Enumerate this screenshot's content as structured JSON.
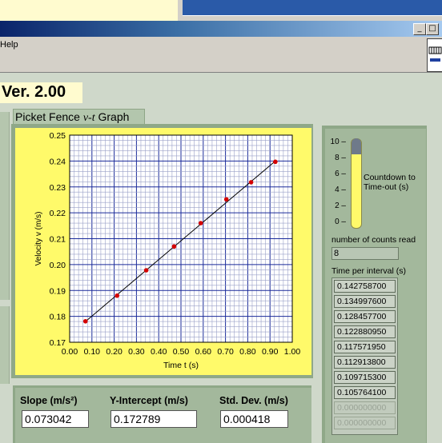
{
  "menu": {
    "help": "Help"
  },
  "window_buttons": {
    "minimize": "_",
    "maximize": "□"
  },
  "version": "Ver. 2.00",
  "graph_title": "Picket Fence v-t Graph",
  "graph_title_parts": {
    "prefix": "Picket Fence ",
    "italic": "v-t",
    "suffix": " Graph"
  },
  "chart_data": {
    "type": "scatter",
    "xlabel": "Time t (s)",
    "ylabel": "Velocity v (m/s)",
    "xlim": [
      0.0,
      1.0
    ],
    "ylim": [
      0.17,
      0.25
    ],
    "x_ticks": [
      "0.00",
      "0.10",
      "0.20",
      "0.30",
      "0.40",
      "0.50",
      "0.60",
      "0.70",
      "0.80",
      "0.90",
      "1.00"
    ],
    "y_ticks": [
      "0.17",
      "0.18",
      "0.19",
      "0.20",
      "0.21",
      "0.22",
      "0.23",
      "0.24",
      "0.25"
    ],
    "grid": true,
    "background": "#fffa6a",
    "grid_major_color": "#1a2a9a",
    "grid_minor_color": "#9aa0c8",
    "point_color": "#d40000",
    "line_color": "#000000",
    "series": [
      {
        "x": [
          0.071,
          0.213,
          0.344,
          0.469,
          0.589,
          0.704,
          0.815,
          0.924
        ],
        "y": [
          0.1781,
          0.188,
          0.1978,
          0.207,
          0.216,
          0.2252,
          0.2318,
          0.2397
        ]
      }
    ],
    "fit": {
      "x": [
        0.071,
        0.924
      ],
      "y": [
        0.178,
        0.24
      ]
    }
  },
  "gauge": {
    "ticks": [
      "10",
      "8",
      "6",
      "4",
      "2",
      "0"
    ],
    "label": "Countdown to Time-out (s)",
    "value": 8.2,
    "max": 10
  },
  "counts": {
    "label": "number of counts read",
    "value": "8"
  },
  "time_per_interval": {
    "label": "Time per interval (s)",
    "values": [
      "0.142758700",
      "0.134997600",
      "0.128457700",
      "0.122880950",
      "0.117571950",
      "0.112913800",
      "0.109715300",
      "0.105764100",
      "0.000000000",
      "0.000000000"
    ]
  },
  "stats": {
    "slope_label": "Slope (m/s²)",
    "slope_value": "0.073042",
    "intercept_label": "Y-Intercept (m/s)",
    "intercept_value": "0.172789",
    "stddev_label": "Std. Dev. (m/s)",
    "stddev_value": "0.000418"
  }
}
